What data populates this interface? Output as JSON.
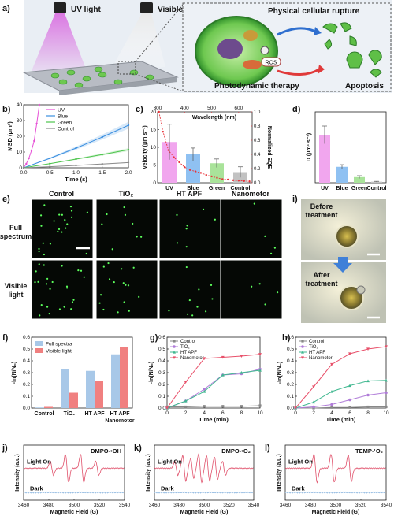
{
  "panels": {
    "a": {
      "letter": "a)",
      "uv_label": "UV light",
      "visible_label": "Visible light",
      "labels": [
        "Physical cellular rupture",
        "Photodynamic therapy",
        "Apoptosis"
      ],
      "ros_label": "ROS"
    },
    "b": {
      "letter": "b)",
      "chart_data": {
        "type": "line",
        "xlabel": "Time (s)",
        "ylabel": "MSD (μm²)",
        "xlim": [
          0,
          2.0
        ],
        "ylim": [
          0,
          40
        ],
        "xticks": [
          "0.0",
          "0.5",
          "1.0",
          "1.5",
          "2.0"
        ],
        "yticks": [
          "0",
          "10",
          "20",
          "30",
          "40"
        ],
        "legend": "top-left",
        "series": [
          {
            "name": "UV",
            "color": "#e64fd6",
            "x": [
              0,
              0.05,
              0.1,
              0.15,
              0.2,
              0.25,
              0.3
            ],
            "y": [
              0,
              2.5,
              6,
              11,
              17,
              28,
              40
            ]
          },
          {
            "name": "Blue",
            "color": "#3b8fe0",
            "x": [
              0,
              0.5,
              1.0,
              1.5,
              2.0
            ],
            "y": [
              0,
              6,
              12.5,
              19.5,
              27
            ]
          },
          {
            "name": "Green",
            "color": "#4cc44c",
            "x": [
              0,
              0.5,
              1.0,
              1.5,
              2.0
            ],
            "y": [
              0,
              2.6,
              5.5,
              8.4,
              11.5
            ]
          },
          {
            "name": "Control",
            "color": "#8a8a8a",
            "x": [
              0,
              0.5,
              1.0,
              1.5,
              2.0
            ],
            "y": [
              0,
              0.7,
              1.5,
              2.4,
              3.3
            ]
          }
        ]
      }
    },
    "c": {
      "letter": "c)",
      "chart_data": {
        "type": "bar",
        "categories": [
          "UV",
          "Blue",
          "Green",
          "Control"
        ],
        "values": [
          11.5,
          8,
          5.5,
          3
        ],
        "errors": [
          5,
          1.8,
          1.2,
          1.5
        ],
        "colors": [
          "#f1a6ee",
          "#8fc1f2",
          "#a9e39a",
          "#c2c2c2"
        ],
        "ylabel": "Velocity (μm s⁻¹)",
        "ylim": [
          0,
          20
        ],
        "yticks": [
          "0",
          "5",
          "10",
          "15",
          "20"
        ],
        "top_axis_label": "Wavelength (nm)",
        "top_ticks": [
          "300",
          "400",
          "500",
          "600"
        ],
        "wavelength_range": [
          300,
          650
        ],
        "right_axis_label": "Normalized EQE",
        "right_ticks": [
          "0.0",
          "0.2",
          "0.4",
          "0.6",
          "0.8",
          "1.0"
        ],
        "eqe_curve": {
          "color": "#e8333a",
          "wavelength": [
            305,
            320,
            340,
            360,
            380,
            400,
            420,
            440,
            460,
            480,
            500,
            520,
            540,
            560,
            580,
            600,
            620,
            640
          ],
          "eqe": [
            1.0,
            0.72,
            0.46,
            0.36,
            0.29,
            0.22,
            0.18,
            0.16,
            0.14,
            0.11,
            0.09,
            0.07,
            0.05,
            0.045,
            0.035,
            0.03,
            0.025,
            0.02
          ]
        }
      }
    },
    "d": {
      "letter": "d)",
      "chart_data": {
        "type": "bar",
        "categories": [
          "UV",
          "Blue",
          "Green",
          "Control"
        ],
        "values": [
          13.5,
          4.5,
          1.6,
          0.3
        ],
        "errors": [
          2.5,
          0.6,
          0.4,
          0.1
        ],
        "colors": [
          "#f1a6ee",
          "#8fc1f2",
          "#a9e39a",
          "#c2c2c2"
        ],
        "ylabel": "D (μm² s⁻¹)",
        "ylim": [
          0,
          20
        ]
      }
    },
    "e": {
      "letter": "e)",
      "col_labels": [
        "Control",
        "TiO₂",
        "HT APF",
        "Nanomotor"
      ],
      "row_labels": [
        "Full spectrum",
        "Visible light"
      ]
    },
    "i": {
      "letter": "i)",
      "before_label": "Before treatment",
      "after_label": "After treatment"
    },
    "f": {
      "letter": "f)",
      "chart_data": {
        "type": "bar",
        "categories": [
          "Control",
          "TiO₂",
          "HT APF",
          "HT APF Nanomotor"
        ],
        "ylabel": "-ln(N/N₀)",
        "ylim": [
          0,
          0.6
        ],
        "yticks": [
          "0.0",
          "0.1",
          "0.2",
          "0.3",
          "0.4",
          "0.5",
          "0.6"
        ],
        "legend": "top-left",
        "series": [
          {
            "name": "Full spectra",
            "color": "#a8c8e8",
            "values": [
              0.005,
              0.33,
              0.315,
              0.455
            ]
          },
          {
            "name": "Visible light",
            "color": "#f08080",
            "values": [
              0.01,
              0.13,
              0.23,
              0.515
            ]
          }
        ]
      }
    },
    "g": {
      "letter": "g)",
      "chart_data": {
        "type": "line",
        "xlabel": "Time (min)",
        "ylabel": "-ln(N/N₀)",
        "xlim": [
          0,
          10
        ],
        "ylim": [
          0,
          0.6
        ],
        "xticks": [
          "0",
          "2",
          "4",
          "6",
          "8",
          "10"
        ],
        "yticks": [
          "0.0",
          "0.1",
          "0.2",
          "0.3",
          "0.4",
          "0.5",
          "0.6"
        ],
        "legend": "top-left",
        "series": [
          {
            "name": "Control",
            "color": "#888888",
            "marker": "square",
            "x": [
              0,
              2,
              4,
              6,
              8,
              10
            ],
            "y": [
              0.01,
              0.01,
              0.015,
              0.015,
              0.015,
              0.02
            ]
          },
          {
            "name": "TiO₂",
            "color": "#b07cd8",
            "marker": "circle",
            "x": [
              0,
              2,
              4,
              6,
              8,
              10
            ],
            "y": [
              0,
              0.06,
              0.16,
              0.28,
              0.29,
              0.33
            ]
          },
          {
            "name": "HT APF",
            "color": "#40b890",
            "marker": "triangle",
            "x": [
              0,
              2,
              4,
              6,
              8,
              10
            ],
            "y": [
              0,
              0.06,
              0.14,
              0.28,
              0.3,
              0.32
            ]
          },
          {
            "name": "Nanomotor",
            "color": "#e8506a",
            "marker": "down",
            "x": [
              0,
              2,
              4,
              6,
              8,
              10
            ],
            "y": [
              0,
              0.22,
              0.42,
              0.43,
              0.44,
              0.455
            ]
          }
        ]
      }
    },
    "h": {
      "letter": "h)",
      "chart_data": {
        "type": "line",
        "xlabel": "Time (min)",
        "ylabel": "-ln(N/N₀)",
        "xlim": [
          0,
          10
        ],
        "ylim": [
          0,
          0.6
        ],
        "xticks": [
          "0",
          "2",
          "4",
          "6",
          "8",
          "10"
        ],
        "yticks": [
          "0.0",
          "0.1",
          "0.2",
          "0.3",
          "0.4",
          "0.5",
          "0.6"
        ],
        "legend": "top-left",
        "series": [
          {
            "name": "Control",
            "color": "#888888",
            "marker": "square",
            "x": [
              0,
              2,
              4,
              6,
              8,
              10
            ],
            "y": [
              0,
              0,
              0.005,
              0.005,
              0.01,
              0.01
            ]
          },
          {
            "name": "TiO₂",
            "color": "#b07cd8",
            "marker": "circle",
            "x": [
              0,
              2,
              4,
              6,
              8,
              10
            ],
            "y": [
              0,
              0.01,
              0.03,
              0.07,
              0.11,
              0.13
            ]
          },
          {
            "name": "HT APF",
            "color": "#40b890",
            "marker": "triangle",
            "x": [
              0,
              2,
              4,
              6,
              8,
              10
            ],
            "y": [
              0,
              0.05,
              0.14,
              0.19,
              0.23,
              0.235
            ]
          },
          {
            "name": "Nanomotor",
            "color": "#e8506a",
            "marker": "down",
            "x": [
              0,
              2,
              4,
              6,
              8,
              10
            ],
            "y": [
              0,
              0.18,
              0.37,
              0.46,
              0.5,
              0.52
            ]
          }
        ]
      }
    },
    "j": {
      "letter": "j)",
      "chart_data": {
        "type": "line",
        "title": "DMPO-•OH",
        "xlabel": "Magnetic Field (G)",
        "ylabel": "Intensity (a.u.)",
        "xlim": [
          3450,
          3550
        ],
        "xticks": [
          "3460",
          "3480",
          "3500",
          "3520",
          "3540"
        ],
        "series": [
          {
            "name": "Light On",
            "color": "#e0506a",
            "lines": [
              {
                "x": 3478,
                "a": 0.5
              },
              {
                "x": 3493,
                "a": 1.0
              },
              {
                "x": 3508,
                "a": 1.0
              },
              {
                "x": 3523,
                "a": 0.5
              }
            ]
          },
          {
            "name": "Dark",
            "color": "#8fb8e0",
            "lines": []
          }
        ]
      }
    },
    "k": {
      "letter": "k)",
      "chart_data": {
        "type": "line",
        "title": "DMPO-•O₂",
        "xlabel": "Magnetic Field (G)",
        "ylabel": "Intensity (a.u.)",
        "xlim": [
          3450,
          3550
        ],
        "xticks": [
          "3460",
          "3480",
          "3500",
          "3520",
          "3540"
        ],
        "series": [
          {
            "name": "Light On",
            "color": "#e0506a",
            "lines": [
              {
                "x": 3472,
                "a": 0.5
              },
              {
                "x": 3480,
                "a": 0.9
              },
              {
                "x": 3488,
                "a": 0.7
              },
              {
                "x": 3496,
                "a": 1.0
              },
              {
                "x": 3504,
                "a": 0.9
              },
              {
                "x": 3512,
                "a": 0.8
              },
              {
                "x": 3520,
                "a": 0.5
              }
            ]
          },
          {
            "name": "Dark",
            "color": "#8fb8e0",
            "lines": []
          }
        ]
      }
    },
    "l": {
      "letter": "l)",
      "chart_data": {
        "type": "line",
        "title": "TEMP-¹O₂",
        "xlabel": "Magnetic Field (G)",
        "ylabel": "Intensity (a.u.)",
        "xlim": [
          3450,
          3550
        ],
        "xticks": [
          "3460",
          "3480",
          "3500",
          "3520",
          "3540"
        ],
        "series": [
          {
            "name": "Light On",
            "color": "#e0506a",
            "lines": [
              {
                "x": 3480,
                "a": 1.0
              },
              {
                "x": 3497,
                "a": 1.0
              },
              {
                "x": 3514,
                "a": 0.95
              }
            ]
          },
          {
            "name": "Dark",
            "color": "#8fb8e0",
            "lines": []
          }
        ]
      }
    }
  }
}
